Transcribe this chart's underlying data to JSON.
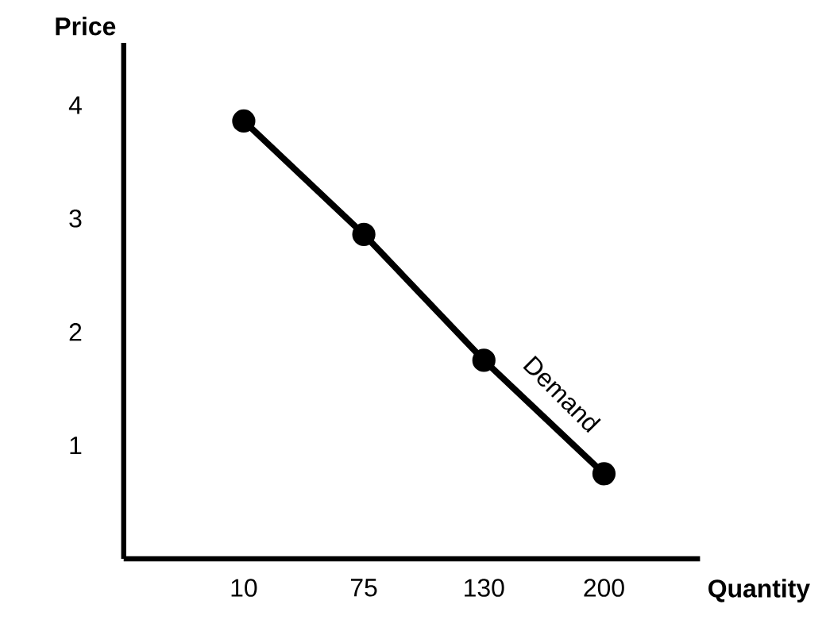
{
  "chart_data": {
    "type": "line",
    "xlabel": "Quantity",
    "ylabel": "Price",
    "categories": [
      "10",
      "75",
      "130",
      "200"
    ],
    "series": [
      {
        "color": "#000000",
        "values": [
          3.86,
          2.86,
          1.75,
          0.75
        ]
      }
    ],
    "ylim": [
      0,
      4.55
    ],
    "yticks": [
      1,
      2,
      3,
      4
    ],
    "grid": false,
    "marker": "circle",
    "line_style": "solid",
    "annotations": [
      "Demand"
    ]
  }
}
